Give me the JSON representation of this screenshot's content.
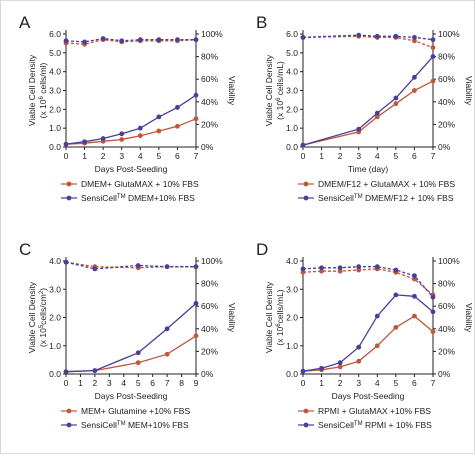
{
  "colors": {
    "dmem": "#c0573a",
    "sensi": "#4b3d9a"
  },
  "chart_data": [
    {
      "letter": "A",
      "type": "line",
      "xlabel": "Days Post-Seeding",
      "ylabel_line1": "Viable Cell Density",
      "ylabel_pre": "(x 10",
      "ylabel_exp": "6",
      "ylabel_post": " cells/ml)",
      "y2label": "Viability",
      "xlim": [
        0,
        7
      ],
      "ylim": [
        0,
        6
      ],
      "y2lim": [
        0,
        100
      ],
      "x_ticks": [
        "0",
        "1",
        "2",
        "3",
        "4",
        "5",
        "6",
        "7"
      ],
      "y_ticks": [
        "0.0",
        "1.0",
        "2.0",
        "3.0",
        "4.0",
        "5.0",
        "6.0"
      ],
      "y2_ticks": [
        "0%",
        "20%",
        "40%",
        "60%",
        "80%",
        "100%"
      ],
      "series": [
        {
          "key": "dmem",
          "legend_text": "DMEM+ GlutaMAX + 10% FBS",
          "x": [
            0,
            1,
            2,
            3,
            4,
            5,
            6,
            7
          ],
          "density": [
            0.15,
            0.2,
            0.3,
            0.4,
            0.6,
            0.85,
            1.1,
            1.5
          ],
          "viability": [
            92,
            91,
            95,
            93,
            94,
            94,
            94,
            95
          ]
        },
        {
          "key": "sensi",
          "legend_pre": "SensiCell",
          "legend_sup": "TM",
          "legend_post": " DMEM+10% FBS",
          "x": [
            0,
            1,
            2,
            3,
            4,
            5,
            6,
            7
          ],
          "density": [
            0.15,
            0.28,
            0.45,
            0.7,
            1.0,
            1.6,
            2.1,
            2.75
          ],
          "viability": [
            94,
            93,
            96,
            94,
            95,
            95,
            95,
            95
          ]
        }
      ]
    },
    {
      "letter": "B",
      "type": "line",
      "xlabel": "Time (day)",
      "ylabel_line1": "Viable Cell Density",
      "ylabel_pre": "(x 10",
      "ylabel_exp": "6",
      "ylabel_post": " cells/mL)",
      "y2label": "Viability",
      "xlim": [
        0,
        7
      ],
      "ylim": [
        0,
        6
      ],
      "y2lim": [
        0,
        100
      ],
      "x_ticks": [
        "0",
        "1",
        "2",
        "3",
        "4",
        "5",
        "6",
        "7"
      ],
      "y_ticks": [
        "0.0",
        "1.0",
        "2.0",
        "3.0",
        "4.0",
        "5.0",
        "6.0"
      ],
      "y2_ticks": [
        "0%",
        "20%",
        "40%",
        "60%",
        "80%",
        "100%"
      ],
      "series": [
        {
          "key": "dmem",
          "legend_text": "DMEM/F12 + GlutaMAX + 10% FBS",
          "x": [
            0,
            3,
            4,
            5,
            6,
            7
          ],
          "density": [
            0.1,
            0.8,
            1.6,
            2.3,
            3.0,
            3.5
          ],
          "viability": [
            97,
            98,
            97,
            97,
            94,
            88
          ]
        },
        {
          "key": "sensi",
          "legend_pre": "SensiCell",
          "legend_sup": "TM",
          "legend_post": " DMEM/F12 + 10% FBS",
          "x": [
            0,
            3,
            4,
            5,
            6,
            7
          ],
          "density": [
            0.1,
            0.95,
            1.8,
            2.6,
            3.7,
            4.8
          ],
          "viability": [
            97,
            99,
            98,
            98,
            97,
            95
          ]
        }
      ]
    },
    {
      "letter": "C",
      "type": "line",
      "xlabel": "Days Post-Seeding",
      "ylabel_line1": "Viable Cell Density",
      "ylabel_pre": "(x 10",
      "ylabel_exp": "5",
      "ylabel_post": "cells/cm",
      "ylabel_post_sup": "2",
      "ylabel_end": ")",
      "y2label": "Viability",
      "xlim": [
        0,
        9
      ],
      "ylim": [
        0,
        4
      ],
      "y2lim": [
        0,
        100
      ],
      "x_ticks": [
        "0",
        "1",
        "2",
        "3",
        "4",
        "5",
        "6",
        "7",
        "8",
        "9"
      ],
      "y_ticks": [
        "0.0",
        "1.0",
        "2.0",
        "3.0",
        "4.0"
      ],
      "y2_ticks": [
        "0%",
        "20%",
        "40%",
        "60%",
        "80%",
        "100%"
      ],
      "series": [
        {
          "key": "dmem",
          "legend_text": "MEM+ Glutamine +10% FBS",
          "x": [
            0,
            2,
            5,
            7,
            9
          ],
          "density": [
            0.08,
            0.12,
            0.4,
            0.7,
            1.35
          ],
          "viability": [
            99,
            95,
            94,
            95,
            95
          ]
        },
        {
          "key": "sensi",
          "legend_pre": "SensiCell",
          "legend_sup": "TM",
          "legend_post": " MEM+10% FBS",
          "x": [
            0,
            2,
            5,
            7,
            9
          ],
          "density": [
            0.08,
            0.12,
            0.75,
            1.6,
            2.5
          ],
          "viability": [
            99,
            93,
            96,
            95,
            95
          ]
        }
      ]
    },
    {
      "letter": "D",
      "type": "line",
      "xlabel": "Days Post-Seeding",
      "ylabel_line1": "Viable Cell Density",
      "ylabel_pre": "(x 10",
      "ylabel_exp": "6",
      "ylabel_post": "cells/mL)",
      "y2label": "Viability",
      "xlim": [
        0,
        7
      ],
      "ylim": [
        0,
        4
      ],
      "y2lim": [
        0,
        100
      ],
      "x_ticks": [
        "0",
        "1",
        "2",
        "3",
        "4",
        "5",
        "6",
        "7"
      ],
      "y_ticks": [
        "0.0",
        "1.0",
        "2.0",
        "3.0",
        "4.0"
      ],
      "y2_ticks": [
        "0%",
        "20%",
        "40%",
        "60%",
        "80%",
        "100%"
      ],
      "series": [
        {
          "key": "dmem",
          "legend_text": "RPMI + GlutaMAX +10% FBS",
          "x": [
            0,
            1,
            2,
            3,
            4,
            5,
            6,
            7
          ],
          "density": [
            0.1,
            0.15,
            0.25,
            0.45,
            1.0,
            1.65,
            2.05,
            1.5
          ],
          "viability": [
            90,
            91,
            91,
            92,
            93,
            90,
            84,
            70
          ]
        },
        {
          "key": "sensi",
          "legend_pre": "SensiCell",
          "legend_sup": "TM",
          "legend_post": " RPMI + 10% FBS",
          "x": [
            0,
            1,
            2,
            3,
            4,
            5,
            6,
            7
          ],
          "density": [
            0.1,
            0.2,
            0.4,
            0.95,
            2.05,
            2.8,
            2.75,
            2.2
          ],
          "viability": [
            93,
            94,
            94,
            95,
            95,
            92,
            87,
            68
          ]
        }
      ]
    }
  ]
}
